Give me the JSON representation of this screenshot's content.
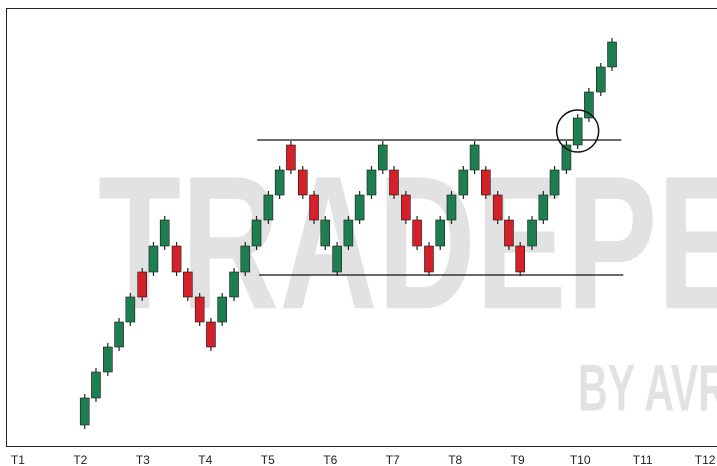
{
  "chart_data": {
    "type": "candlestick",
    "watermark": [
      "TRADEPE",
      "BY AVR"
    ],
    "x": [
      2.07,
      2.25,
      2.44,
      2.62,
      2.8,
      2.99,
      3.17,
      3.35,
      3.54,
      3.72,
      3.91,
      4.09,
      4.27,
      4.46,
      4.64,
      4.82,
      5.01,
      5.19,
      5.37,
      5.56,
      5.74,
      5.92,
      6.11,
      6.29,
      6.47,
      6.66,
      6.84,
      7.02,
      7.21,
      7.39,
      7.58,
      7.76,
      7.94,
      8.13,
      8.31,
      8.49,
      8.68,
      8.86,
      9.04,
      9.23,
      9.41,
      9.59,
      9.78,
      9.96,
      10.14,
      10.33,
      10.51
    ],
    "open": [
      22,
      49,
      75,
      100,
      125,
      175,
      175,
      201,
      201,
      175,
      150,
      125,
      125,
      150,
      175,
      201,
      227,
      252,
      302,
      277,
      252,
      201,
      175,
      201,
      227,
      252,
      277,
      277,
      252,
      227,
      201,
      201,
      227,
      252,
      277,
      277,
      252,
      227,
      201,
      201,
      227,
      252,
      277,
      302,
      329,
      355,
      380
    ],
    "close": [
      49,
      75,
      100,
      125,
      150,
      150,
      201,
      227,
      175,
      150,
      125,
      100,
      150,
      175,
      201,
      227,
      252,
      277,
      277,
      252,
      227,
      227,
      201,
      227,
      252,
      277,
      302,
      252,
      227,
      201,
      175,
      227,
      252,
      277,
      302,
      252,
      227,
      201,
      175,
      227,
      252,
      277,
      302,
      329,
      355,
      380,
      405
    ],
    "high": [
      53,
      79,
      104,
      129,
      154,
      179,
      205,
      231,
      205,
      179,
      154,
      129,
      154,
      179,
      205,
      231,
      256,
      281,
      306,
      281,
      256,
      231,
      205,
      231,
      256,
      281,
      306,
      281,
      256,
      231,
      205,
      231,
      256,
      281,
      306,
      281,
      256,
      231,
      205,
      231,
      256,
      281,
      306,
      333,
      359,
      384,
      409
    ],
    "low": [
      18,
      45,
      71,
      96,
      121,
      146,
      171,
      197,
      171,
      146,
      121,
      96,
      121,
      146,
      171,
      197,
      223,
      248,
      273,
      248,
      223,
      197,
      171,
      197,
      223,
      248,
      273,
      248,
      223,
      197,
      171,
      197,
      223,
      248,
      273,
      248,
      223,
      197,
      171,
      197,
      223,
      248,
      273,
      298,
      325,
      351,
      376
    ],
    "up_color": "#1d7f4f",
    "down_color": "#d42129",
    "levels": [
      {
        "y": 307,
        "x": [
          4.83,
          10.66
        ]
      },
      {
        "y": 172,
        "x": [
          4.86,
          10.69
        ]
      }
    ],
    "circle": {
      "x": 9.96,
      "y": 316
    },
    "xlim": [
      0.81,
      12.19
    ],
    "ylim": [
      0,
      439
    ],
    "xticks": [
      {
        "value": 1,
        "label": "T1"
      },
      {
        "value": 2,
        "label": "T2"
      },
      {
        "value": 3,
        "label": "T3"
      },
      {
        "value": 4,
        "label": "T4"
      },
      {
        "value": 5,
        "label": "T5"
      },
      {
        "value": 6,
        "label": "T6"
      },
      {
        "value": 7,
        "label": "T7"
      },
      {
        "value": 8,
        "label": "T8"
      },
      {
        "value": 9,
        "label": "T9"
      },
      {
        "value": 10,
        "label": "T10"
      },
      {
        "value": 11,
        "label": "T11"
      },
      {
        "value": 12,
        "label": "T12"
      }
    ]
  }
}
